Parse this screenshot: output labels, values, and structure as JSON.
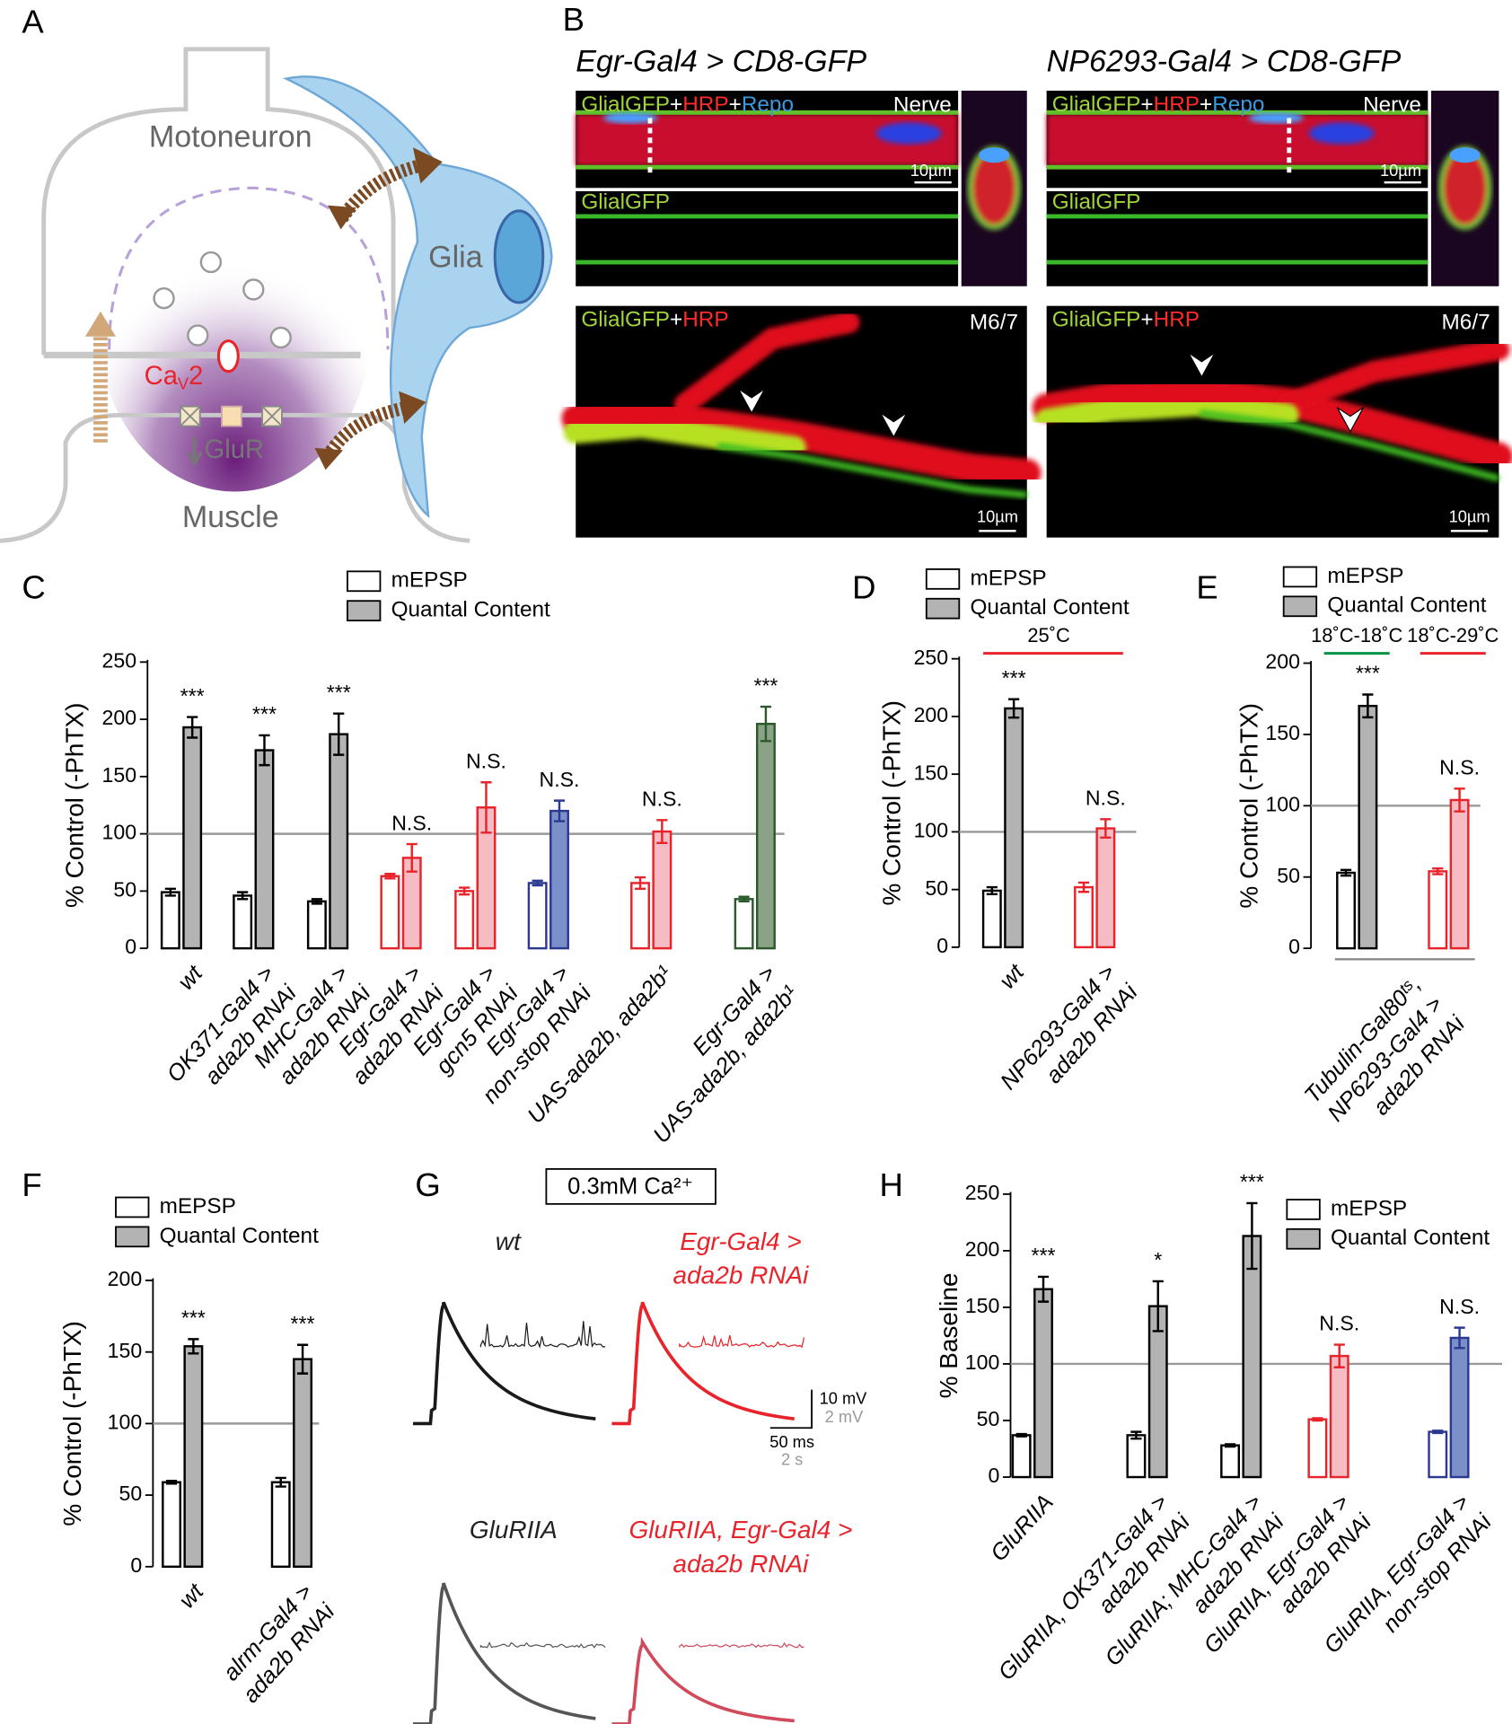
{
  "panel_labels": [
    "A",
    "B",
    "C",
    "D",
    "E",
    "F",
    "G",
    "H"
  ],
  "diagram": {
    "motoneuron": "Motoneuron",
    "glia": "Glia",
    "channel": "Ca",
    "channel_sub": "V",
    "channel_num": "2",
    "receptor": "GluR",
    "muscle": "Muscle"
  },
  "images": {
    "titles": [
      "Egr-Gal4 > CD8-GFP",
      "NP6293-Gal4 > CD8-GFP"
    ],
    "nerve_stain": [
      "GlialGFP",
      "+",
      "HRP",
      "+",
      "Repo"
    ],
    "nerve_label": "Nerve",
    "gfp_label": "GlialGFP",
    "nmj_stain": [
      "GlialGFP",
      "+",
      "HRP"
    ],
    "nmj_label": "M6/7",
    "scale": "10µm"
  },
  "traces": {
    "condition": "0.3mM Ca²⁺",
    "labels": [
      [
        "wt"
      ],
      [
        "Egr-Gal4 >",
        "ada2b RNAi"
      ],
      [
        "GluRIIA"
      ],
      [
        "GluRIIA, Egr-Gal4 >",
        "ada2b RNAi"
      ]
    ],
    "scale_v": "10 mV",
    "scale_v2": "2 mV",
    "scale_t": "50 ms",
    "scale_t2": "2 s"
  },
  "chart_data": [
    {
      "type": "bar",
      "panel": "C",
      "ylabel": "% Control (-PhTX)",
      "ylim": [
        0,
        250
      ],
      "yticks": [
        0,
        50,
        100,
        150,
        200,
        250
      ],
      "reference_line": 100,
      "categories": [
        [
          "wt"
        ],
        [
          "OK371-Gal4 >",
          "ada2b RNAi"
        ],
        [
          "MHC-Gal4 >",
          "ada2b RNAi"
        ],
        [
          "Egr-Gal4 >",
          "ada2b RNAi"
        ],
        [
          "Egr-Gal4 >",
          "gcn5 RNAi"
        ],
        [
          "Egr-Gal4 >",
          "non-stop RNAi"
        ],
        [
          "UAS-ada2b, ada2b¹"
        ],
        [
          "Egr-Gal4 >",
          "UAS-ada2b, ada2b¹"
        ]
      ],
      "category_colors": [
        "#000000",
        "#000000",
        "#000000",
        "#e8232a",
        "#e8232a",
        "#2b3990",
        "#e8232a",
        "#2d5a2d"
      ],
      "series": [
        {
          "name": "mEPSP",
          "color": "#ffffff",
          "values": [
            49,
            46,
            41,
            63,
            50,
            57,
            57,
            43
          ],
          "errors": [
            3,
            3,
            2,
            2,
            3,
            2,
            5,
            2
          ]
        },
        {
          "name": "Quantal Content",
          "color": "#b3b3b3",
          "colors": [
            "#b3b3b3",
            "#b3b3b3",
            "#b3b3b3",
            "#f6bcc3",
            "#f6bcc3",
            "#7b8fc8",
            "#f6bcc3",
            "#8aa387"
          ],
          "values": [
            193,
            173,
            187,
            79,
            123,
            120,
            102,
            196
          ],
          "errors": [
            9,
            13,
            18,
            12,
            22,
            9,
            10,
            15
          ]
        }
      ],
      "annotations": [
        "***",
        "***",
        "***",
        "N.S.",
        "N.S.",
        "N.S.",
        "N.S.",
        "***"
      ]
    },
    {
      "type": "bar",
      "panel": "D",
      "ylabel": "% Control (-PhTX)",
      "ylim": [
        0,
        250
      ],
      "yticks": [
        0,
        50,
        100,
        150,
        200,
        250
      ],
      "reference_line": 100,
      "header": "25˚C",
      "header_color": "#e8232a",
      "categories": [
        [
          "wt"
        ],
        [
          "NP6293-Gal4 >",
          "ada2b RNAi"
        ]
      ],
      "category_colors": [
        "#000000",
        "#e8232a"
      ],
      "series": [
        {
          "name": "mEPSP",
          "color": "#ffffff",
          "values": [
            49,
            52
          ],
          "errors": [
            3,
            4
          ]
        },
        {
          "name": "Quantal Content",
          "color": "#b3b3b3",
          "colors": [
            "#b3b3b3",
            "#f6bcc3"
          ],
          "values": [
            207,
            103
          ],
          "errors": [
            8,
            8
          ]
        }
      ],
      "annotations": [
        "***",
        "N.S."
      ]
    },
    {
      "type": "bar",
      "panel": "E",
      "ylabel": "% Control (-PhTX)",
      "ylim": [
        0,
        200
      ],
      "yticks": [
        0,
        50,
        100,
        150,
        200
      ],
      "reference_line": 100,
      "categories": [
        "18˚C-18˚C",
        "18˚C-29˚C"
      ],
      "header_colors": [
        "#009245",
        "#e8232a"
      ],
      "group_label": [
        "Tubulin-Gal80ᵗˢ,",
        "NP6293-Gal4 >",
        "ada2b RNAi"
      ],
      "category_colors": [
        "#000000",
        "#e8232a"
      ],
      "series": [
        {
          "name": "mEPSP",
          "color": "#ffffff",
          "values": [
            53,
            54
          ],
          "errors": [
            2,
            2
          ]
        },
        {
          "name": "Quantal Content",
          "color": "#b3b3b3",
          "colors": [
            "#b3b3b3",
            "#f6bcc3"
          ],
          "values": [
            170,
            104
          ],
          "errors": [
            8,
            8
          ]
        }
      ],
      "annotations": [
        "***",
        "N.S."
      ]
    },
    {
      "type": "bar",
      "panel": "F",
      "ylabel": "% Control (-PhTX)",
      "ylim": [
        0,
        200
      ],
      "yticks": [
        0,
        50,
        100,
        150,
        200
      ],
      "reference_line": 100,
      "categories": [
        [
          "wt"
        ],
        [
          "alrm-Gal4 >",
          "ada2b RNAi"
        ]
      ],
      "category_colors": [
        "#000000",
        "#000000"
      ],
      "series": [
        {
          "name": "mEPSP",
          "color": "#ffffff",
          "values": [
            59,
            59
          ],
          "errors": [
            1,
            3
          ]
        },
        {
          "name": "Quantal Content",
          "color": "#b3b3b3",
          "colors": [
            "#b3b3b3",
            "#b3b3b3"
          ],
          "values": [
            154,
            145
          ],
          "errors": [
            5,
            10
          ]
        }
      ],
      "annotations": [
        "***",
        "***"
      ]
    },
    {
      "type": "bar",
      "panel": "H",
      "ylabel": "% Baseline",
      "ylim": [
        0,
        250
      ],
      "yticks": [
        0,
        50,
        100,
        150,
        200,
        250
      ],
      "reference_line": 100,
      "categories": [
        [
          "GluRIIA"
        ],
        [
          "GluRIIA, OK371-Gal4 >",
          "ada2b RNAi"
        ],
        [
          "GluRIIA; MHC-Gal4 >",
          "ada2b RNAi"
        ],
        [
          "GluRIIA, Egr-Gal4 >",
          "ada2b RNAi"
        ],
        [
          "GluRIIA, Egr-Gal4 >",
          "non-stop RNAi"
        ]
      ],
      "category_colors": [
        "#000000",
        "#000000",
        "#000000",
        "#e8232a",
        "#2b3990"
      ],
      "series": [
        {
          "name": "mEPSP",
          "color": "#ffffff",
          "values": [
            37,
            37,
            28,
            51,
            40
          ],
          "errors": [
            1,
            3,
            1,
            1,
            1
          ]
        },
        {
          "name": "Quantal Content",
          "color": "#b3b3b3",
          "colors": [
            "#b3b3b3",
            "#b3b3b3",
            "#b3b3b3",
            "#f6bcc3",
            "#7b8fc8"
          ],
          "values": [
            166,
            151,
            213,
            107,
            123
          ],
          "errors": [
            11,
            22,
            29,
            10,
            9
          ]
        }
      ],
      "annotations": [
        "***",
        "*",
        "***",
        "N.S.",
        "N.S."
      ]
    }
  ]
}
